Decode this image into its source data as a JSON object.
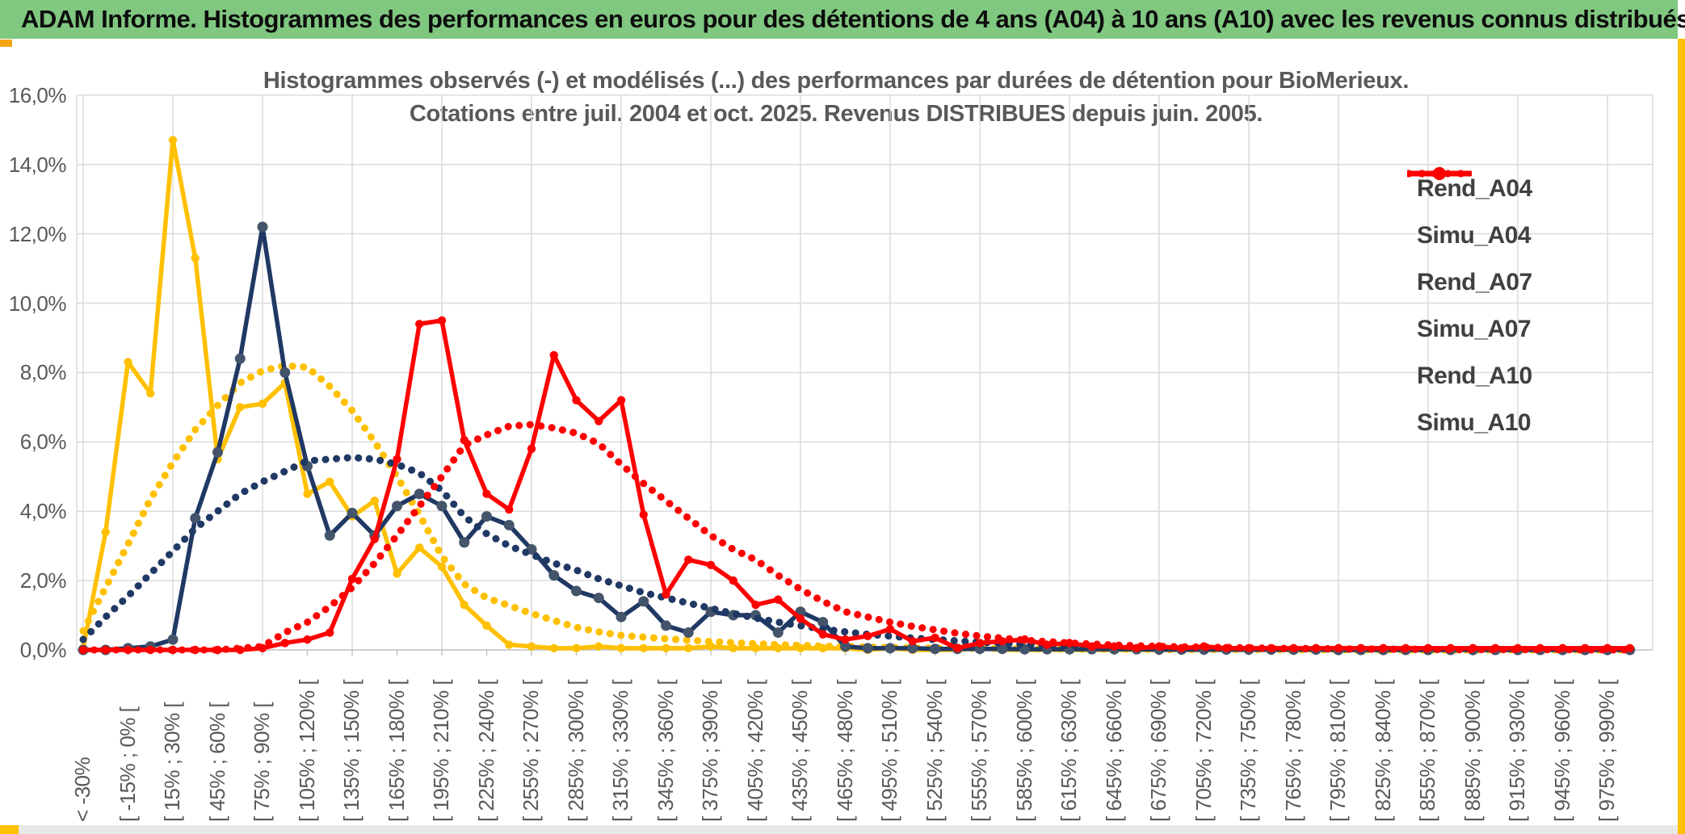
{
  "window": {
    "header_title": "ADAM Informe. Histogrammes des performances en euros pour des détentions de 4 ans (A04) à 10 ans (A10) avec les revenus connus distribués"
  },
  "chart_data": {
    "type": "line",
    "title_line1": "Histogrammes observés (-) et modélisés (...) des performances par durées de détention pour BioMerieux.",
    "title_line2": "Cotations entre juil. 2004 et oct. 2025. Revenus DISTRIBUES depuis juin. 2005.",
    "ylim": [
      0,
      16
    ],
    "ytick_labels": [
      "0,0%",
      "2,0%",
      "4,0%",
      "6,0%",
      "8,0%",
      "10,0%",
      "12,0%",
      "14,0%",
      "16,0%"
    ],
    "grid": "on",
    "legend_position": "right",
    "bin_count": 70,
    "x_labels_every_other_bin": [
      "< -30%",
      "[ -15% ; 0% [",
      "[ 15% ; 30% [",
      "[ 45% ; 60% [",
      "[ 75% ; 90% [",
      "[ 105% ; 120% [",
      "[ 135% ; 150% [",
      "[ 165% ; 180% [",
      "[ 195% ; 210% [",
      "[ 225% ; 240% [",
      "[ 255% ; 270% [",
      "[ 285% ; 300% [",
      "[ 315% ; 330% [",
      "[ 345% ; 360% [",
      "[ 375% ; 390% [",
      "[ 405% ; 420% [",
      "[ 435% ; 450% [",
      "[ 465% ; 480% [",
      "[ 495% ; 510% [",
      "[ 525% ; 540% [",
      "[ 555% ; 570% [",
      "[ 585% ; 600% [",
      "[ 615% ; 630% [",
      "[ 645% ; 660% [",
      "[ 675% ; 690% [",
      "[ 705% ; 720% [",
      "[ 735% ; 750% [",
      "[ 765% ; 780% [",
      "[ 795% ; 810% [",
      "[ 825% ; 840% [",
      "[ 855% ; 870% [",
      "[ 885% ; 900% [",
      "[ 915% ; 930% [",
      "[ 945% ; 960% [",
      "[ 975% ; 990% ["
    ],
    "series": [
      {
        "name": "Rend_A04",
        "style": "solid",
        "color": "#FFC000",
        "marker_color": "#FFC000",
        "values": [
          0.05,
          3.4,
          8.3,
          7.4,
          14.7,
          11.3,
          5.5,
          7.0,
          7.1,
          7.7,
          4.5,
          4.85,
          3.85,
          4.3,
          2.2,
          2.95,
          2.4,
          1.3,
          0.7,
          0.15,
          0.1,
          0.05,
          0.05,
          0.1,
          0.05,
          0.05,
          0.05,
          0.05,
          0.1,
          0.05,
          0.05,
          0.05,
          0.05,
          0.05,
          0.05,
          0,
          0.05,
          0,
          0,
          0,
          0.05,
          0,
          0,
          0,
          0,
          0,
          0,
          0,
          0,
          0,
          0,
          0,
          0,
          0,
          0,
          0,
          0,
          0,
          0,
          0,
          0,
          0,
          0,
          0,
          0,
          0,
          0,
          0,
          0,
          0
        ]
      },
      {
        "name": "Simu_A04",
        "style": "dotted",
        "color": "#FFC000",
        "values": [
          0.55,
          1.8,
          3.05,
          4.35,
          5.4,
          6.35,
          7.05,
          7.7,
          8.05,
          8.2,
          8.15,
          7.6,
          6.9,
          6.0,
          5.0,
          3.9,
          2.7,
          1.9,
          1.5,
          1.28,
          1.05,
          0.85,
          0.65,
          0.52,
          0.42,
          0.37,
          0.32,
          0.28,
          0.24,
          0.21,
          0.18,
          0.15,
          0.13,
          0.11,
          0.1,
          0.08,
          0.07,
          0.06,
          0.05,
          0.05,
          0.04,
          0.04,
          0.03,
          0.03,
          0.02,
          0.02,
          0.02,
          0.02,
          0.01,
          0.01,
          0.01,
          0.01,
          0.01,
          0.01,
          0,
          0,
          0,
          0,
          0,
          0,
          0,
          0,
          0,
          0,
          0,
          0,
          0,
          0,
          0,
          0
        ]
      },
      {
        "name": "Rend_A07",
        "style": "solid",
        "color": "#203864",
        "marker_color": "#44546A",
        "values": [
          0,
          0,
          0.05,
          0.1,
          0.3,
          3.8,
          5.7,
          8.4,
          12.2,
          8.0,
          5.3,
          3.3,
          3.95,
          3.3,
          4.15,
          4.5,
          4.15,
          3.1,
          3.85,
          3.6,
          2.9,
          2.15,
          1.7,
          1.5,
          0.95,
          1.4,
          0.7,
          0.5,
          1.1,
          1.0,
          1.0,
          0.5,
          1.1,
          0.8,
          0.1,
          0.05,
          0.05,
          0.05,
          0.03,
          0.03,
          0.03,
          0.03,
          0.02,
          0.02,
          0.02,
          0.02,
          0.02,
          0.02,
          0.01,
          0.01,
          0.01,
          0.01,
          0.01,
          0.01,
          0.01,
          0.01,
          0,
          0,
          0,
          0,
          0,
          0,
          0,
          0,
          0,
          0,
          0,
          0,
          0,
          0
        ]
      },
      {
        "name": "Simu_A07",
        "style": "dotted",
        "color": "#203864",
        "values": [
          0.3,
          0.95,
          1.55,
          2.2,
          2.85,
          3.5,
          4.0,
          4.5,
          4.85,
          5.15,
          5.45,
          5.5,
          5.55,
          5.5,
          5.35,
          5.1,
          4.6,
          3.85,
          3.35,
          3.0,
          2.75,
          2.5,
          2.3,
          2.05,
          1.85,
          1.65,
          1.5,
          1.35,
          1.2,
          1.05,
          0.92,
          0.8,
          0.7,
          0.6,
          0.52,
          0.45,
          0.4,
          0.34,
          0.3,
          0.26,
          0.22,
          0.19,
          0.16,
          0.14,
          0.12,
          0.1,
          0.09,
          0.08,
          0.07,
          0.06,
          0.05,
          0.05,
          0.04,
          0.04,
          0.03,
          0.03,
          0.02,
          0.02,
          0.02,
          0.02,
          0.01,
          0.01,
          0.01,
          0.01,
          0.01,
          0.01,
          0.01,
          0.01,
          0.01,
          0.01
        ]
      },
      {
        "name": "Rend_A10",
        "style": "solid",
        "color": "#FF0000",
        "marker_color": "#FF0000",
        "values": [
          0,
          0,
          0,
          0,
          0,
          0,
          0,
          0,
          0.05,
          0.2,
          0.3,
          0.5,
          2.05,
          3.2,
          5.5,
          9.4,
          9.5,
          6.05,
          4.5,
          4.05,
          5.8,
          8.5,
          7.2,
          6.6,
          7.2,
          3.9,
          1.6,
          2.6,
          2.45,
          2.0,
          1.3,
          1.45,
          0.9,
          0.45,
          0.3,
          0.4,
          0.6,
          0.25,
          0.35,
          0.05,
          0.2,
          0.25,
          0.3,
          0.15,
          0.2,
          0.1,
          0.1,
          0.05,
          0.1,
          0.05,
          0.1,
          0.05,
          0.05,
          0.05,
          0.05,
          0.05,
          0.05,
          0.05,
          0.05,
          0.05,
          0.05,
          0.05,
          0.05,
          0.05,
          0.05,
          0.05,
          0.05,
          0.05,
          0.05,
          0.05
        ]
      },
      {
        "name": "Simu_A10",
        "style": "dotted",
        "color": "#FF0000",
        "values": [
          0,
          0,
          0,
          0,
          0,
          0,
          0,
          0.05,
          0.1,
          0.5,
          0.8,
          1.25,
          1.8,
          2.5,
          3.3,
          4.15,
          5.0,
          5.9,
          6.2,
          6.45,
          6.5,
          6.4,
          6.25,
          5.95,
          5.35,
          4.8,
          4.3,
          3.8,
          3.3,
          2.9,
          2.6,
          2.15,
          1.75,
          1.4,
          1.1,
          0.95,
          0.8,
          0.68,
          0.58,
          0.48,
          0.4,
          0.34,
          0.28,
          0.24,
          0.2,
          0.17,
          0.14,
          0.12,
          0.1,
          0.09,
          0.08,
          0.07,
          0.06,
          0.05,
          0.04,
          0.04,
          0.03,
          0.03,
          0.02,
          0.02,
          0.02,
          0.01,
          0.01,
          0.01,
          0.01,
          0.01,
          0.01,
          0,
          0,
          0
        ]
      }
    ],
    "colors": {
      "grid": "#D9D9D9",
      "axis": "#BFBFBF",
      "axis_text": "#595959",
      "title_text": "#595959",
      "header_bg": "#80C780",
      "accent_gold": "#FFC000"
    }
  }
}
